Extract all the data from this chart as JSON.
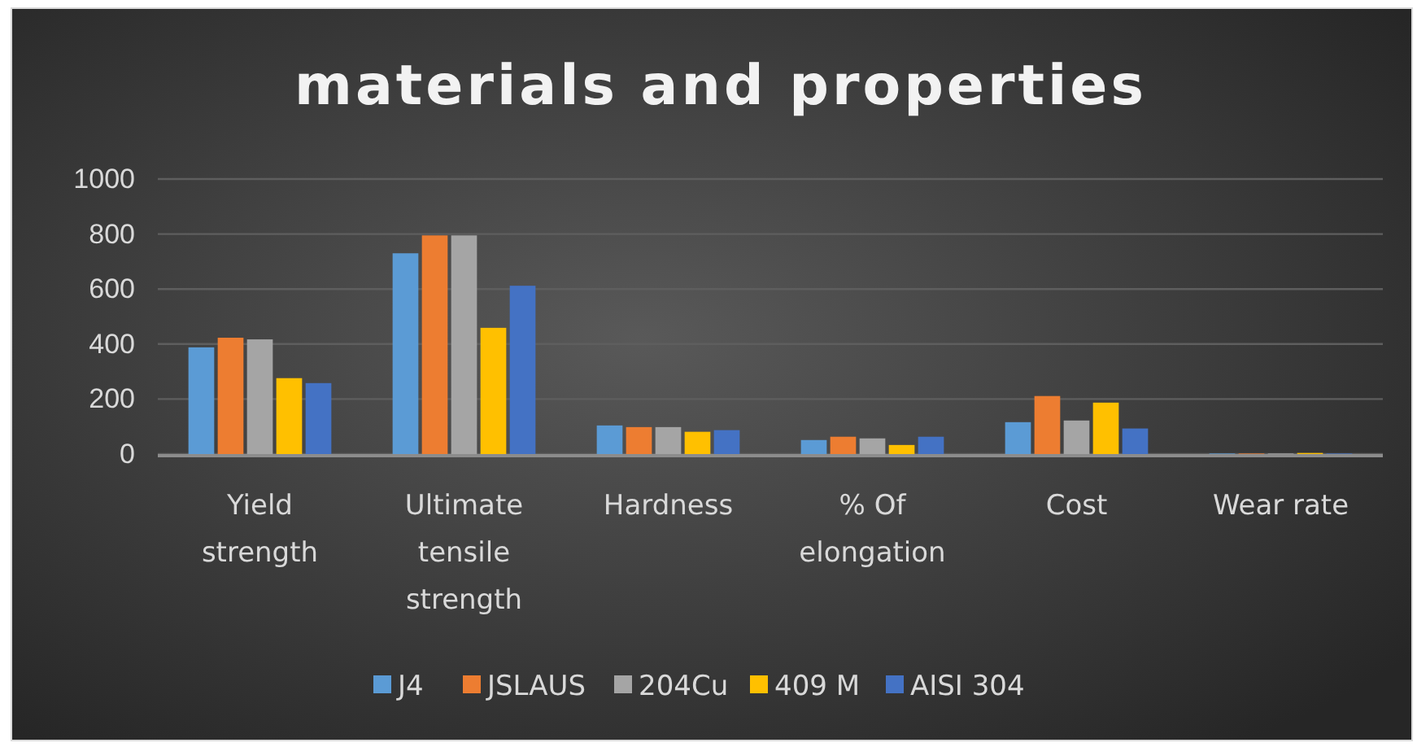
{
  "chart_data": {
    "type": "bar",
    "title": "materials and properties",
    "categories": [
      "Yield strength",
      "Ultimate tensile strength",
      "Hardness",
      "% Of elongation",
      "Cost",
      "Wear rate"
    ],
    "series": [
      {
        "name": "J4",
        "color": "#5b9bd5",
        "values": [
          388,
          730,
          104,
          51,
          116,
          2
        ]
      },
      {
        "name": "JSLAUS",
        "color": "#ed7d31",
        "values": [
          423,
          795,
          98,
          63,
          211,
          2
        ]
      },
      {
        "name": "204Cu",
        "color": "#a5a5a5",
        "values": [
          417,
          795,
          98,
          57,
          122,
          2
        ]
      },
      {
        "name": "409 M",
        "color": "#ffc000",
        "values": [
          276,
          459,
          81,
          33,
          187,
          4
        ]
      },
      {
        "name": "AISI 304",
        "color": "#4472c4",
        "values": [
          258,
          612,
          87,
          63,
          93,
          2
        ]
      }
    ],
    "ylim": [
      0,
      1000
    ],
    "yticks": [
      0,
      200,
      400,
      600,
      800,
      1000
    ],
    "grid": "y",
    "legend": "bottom"
  }
}
